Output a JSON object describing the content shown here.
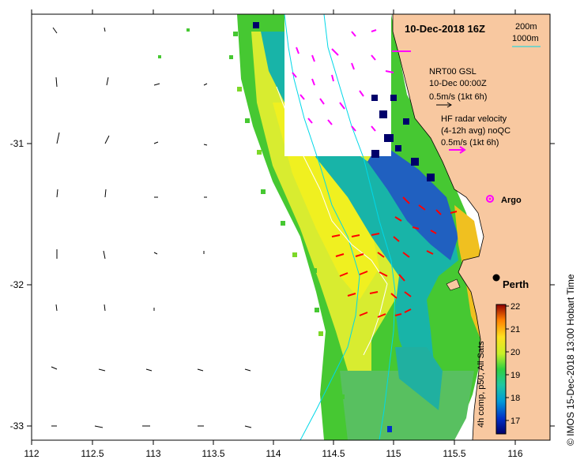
{
  "map": {
    "title": "10-Dec-2018 16Z",
    "side_label": "© IMOS 15-Dec-2018 13:00 Hobart Time",
    "x_ticks": [
      "112",
      "112.5",
      "113",
      "113.5",
      "114",
      "114.5",
      "115",
      "115.5",
      "116"
    ],
    "y_ticks": [
      "-31",
      "-32",
      "-33"
    ],
    "depth_legend": {
      "line1": "200m",
      "line2": "1000m"
    },
    "gsl_legend": {
      "line1": "NRT00 GSL",
      "line2": "10-Dec 00:00Z",
      "line3": "0.5m/s (1kt 6h)"
    },
    "hf_legend": {
      "line1": "HF radar velocity",
      "line2": "(4-12h avg) noQC",
      "line3": "0.5m/s (1kt 6h)"
    },
    "argo_label": "Argo",
    "city_label": "Perth",
    "colorbar": {
      "ticks": [
        "22",
        "21",
        "20",
        "19",
        "18",
        "17"
      ],
      "label": "4h comp, p50, All Sats"
    },
    "colors": {
      "land": "#f8c8a0",
      "hf_vectors": "#ff00ff",
      "inshore_vectors": "#ff0000",
      "model_vectors": "#000000",
      "isobaths": "#00d8e8",
      "argo": "#ff00ff"
    }
  }
}
